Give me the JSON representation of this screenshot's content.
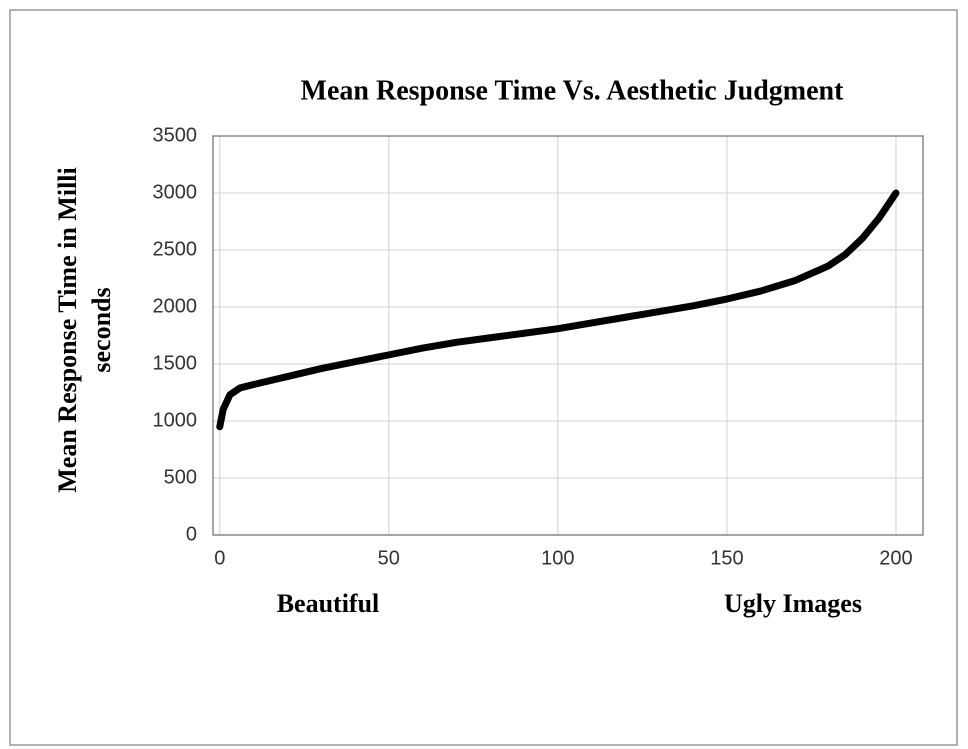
{
  "chart_data": {
    "type": "line",
    "title": "Mean Response Time  Vs.  Aesthetic Judgment",
    "ylabel": [
      "Mean Response Time in Milli",
      "seconds"
    ],
    "annotations": [
      "Beautiful",
      "Ugly Images"
    ],
    "x": [
      0,
      1,
      3,
      6,
      10,
      20,
      30,
      40,
      50,
      60,
      70,
      80,
      90,
      100,
      110,
      120,
      130,
      140,
      150,
      160,
      170,
      180,
      185,
      190,
      195,
      200
    ],
    "series": [
      {
        "name": "Mean Response Time",
        "color": "#000000",
        "values": [
          950,
          1100,
          1230,
          1290,
          1320,
          1390,
          1460,
          1520,
          1580,
          1640,
          1690,
          1730,
          1770,
          1810,
          1860,
          1910,
          1960,
          2010,
          2070,
          2140,
          2230,
          2360,
          2460,
          2600,
          2780,
          3000
        ]
      }
    ],
    "xlim": [
      -2,
      208
    ],
    "xticks": [
      0,
      50,
      100,
      150,
      200
    ],
    "ylim": [
      0,
      3500
    ],
    "yticks": [
      0,
      500,
      1000,
      1500,
      2000,
      2500,
      3000,
      3500
    ],
    "grid": true
  }
}
